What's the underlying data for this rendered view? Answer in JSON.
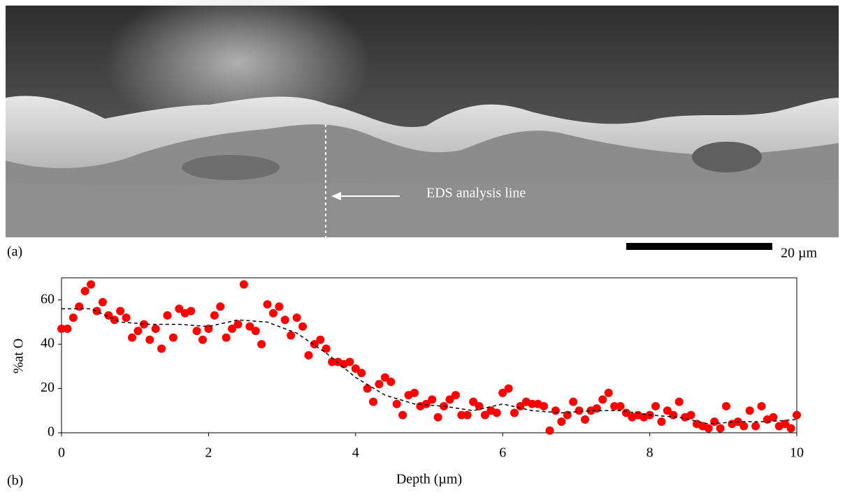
{
  "image": {
    "label": "(a)",
    "annotation": "EDS analysis line",
    "scale_bar": "20 µm"
  },
  "chart_data": {
    "type": "scatter",
    "panel_label": "(b)",
    "x_label": "Depth (µm)",
    "y_label": "%at O",
    "xlim": [
      0,
      10
    ],
    "ylim": [
      0,
      70
    ],
    "xticks": [
      0,
      2,
      4,
      6,
      8,
      10
    ],
    "yticks": [
      0,
      20,
      40,
      60
    ],
    "series": [
      {
        "color": "#ff0000",
        "marker": "circle",
        "x": [
          0,
          0.08,
          0.16,
          0.24,
          0.32,
          0.4,
          0.48,
          0.56,
          0.64,
          0.72,
          0.8,
          0.88,
          0.96,
          1.04,
          1.12,
          1.2,
          1.28,
          1.36,
          1.44,
          1.52,
          1.6,
          1.68,
          1.76,
          1.84,
          1.92,
          2,
          2.08,
          2.16,
          2.24,
          2.32,
          2.4,
          2.48,
          2.56,
          2.64,
          2.72,
          2.8,
          2.88,
          2.96,
          3.04,
          3.12,
          3.2,
          3.28,
          3.36,
          3.44,
          3.52,
          3.6,
          3.68,
          3.76,
          3.84,
          3.92,
          4,
          4.08,
          4.16,
          4.24,
          4.32,
          4.4,
          4.48,
          4.56,
          4.64,
          4.72,
          4.8,
          4.88,
          4.96,
          5.04,
          5.12,
          5.2,
          5.28,
          5.36,
          5.44,
          5.52,
          5.6,
          5.68,
          5.76,
          5.84,
          5.92,
          6,
          6.08,
          6.16,
          6.24,
          6.32,
          6.4,
          6.48,
          6.56,
          6.64,
          6.72,
          6.8,
          6.88,
          6.96,
          7.04,
          7.12,
          7.2,
          7.28,
          7.36,
          7.44,
          7.52,
          7.6,
          7.68,
          7.76,
          7.84,
          7.92,
          8,
          8.08,
          8.16,
          8.24,
          8.32,
          8.4,
          8.48,
          8.56,
          8.64,
          8.72,
          8.8,
          8.88,
          8.96,
          9.04,
          9.12,
          9.2,
          9.28,
          9.36,
          9.44,
          9.52,
          9.6,
          9.68,
          9.76,
          9.84,
          9.92,
          10
        ],
        "values": [
          47,
          47,
          52,
          57,
          64,
          67,
          55,
          59,
          53,
          51,
          55,
          52,
          43,
          46,
          49,
          42,
          47,
          38,
          53,
          43,
          56,
          54,
          55,
          46,
          42,
          47,
          53,
          57,
          43,
          47,
          49,
          67,
          48,
          46,
          40,
          58,
          54,
          57,
          51,
          44,
          52,
          48,
          35,
          40,
          42,
          38,
          32,
          32,
          31,
          32,
          29,
          27,
          20,
          14,
          22,
          25,
          23,
          13,
          8,
          17,
          18,
          12,
          13,
          15,
          7,
          12,
          15,
          17,
          8,
          8,
          14,
          12,
          8,
          10,
          9,
          18,
          20,
          9,
          12,
          14,
          13,
          13,
          12,
          1,
          10,
          5,
          8,
          14,
          10,
          6,
          10,
          11,
          15,
          18,
          12,
          12,
          9,
          7,
          8,
          7,
          8,
          12,
          5,
          10,
          8,
          14,
          7,
          8,
          4,
          3,
          2,
          5,
          2,
          12,
          4,
          5,
          3,
          10,
          3,
          12,
          6,
          7,
          3,
          4,
          2,
          8
        ]
      },
      {
        "color": "#000000",
        "line": "dashed",
        "x": [
          0,
          0.4,
          0.8,
          1.2,
          1.6,
          2,
          2.4,
          2.8,
          3.2,
          3.6,
          4,
          4.4,
          4.8,
          5.2,
          5.6,
          6,
          6.4,
          6.8,
          7.2,
          7.6,
          8,
          8.4,
          8.8,
          9.2,
          9.6,
          10
        ],
        "values": [
          56,
          56,
          50,
          49,
          49,
          48,
          51,
          50,
          45,
          36,
          25,
          17,
          13,
          12,
          10,
          13,
          10,
          9,
          10,
          10,
          8,
          7,
          4,
          5,
          5,
          6
        ]
      }
    ]
  }
}
